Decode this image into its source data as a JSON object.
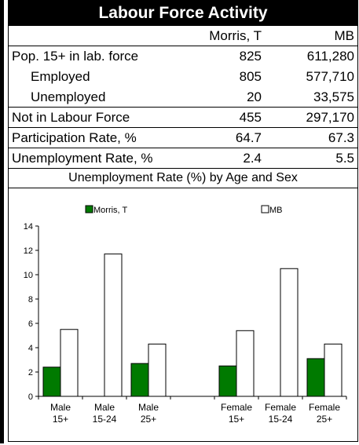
{
  "table": {
    "title": "Labour Force Activity",
    "col_headers": [
      "Morris, T",
      "MB"
    ],
    "rows": [
      {
        "label": "Pop. 15+ in lab. force",
        "morris": "825",
        "mb": "611,280",
        "indent": false
      },
      {
        "label": "Employed",
        "morris": "805",
        "mb": "577,710",
        "indent": true
      },
      {
        "label": "Unemployed",
        "morris": "20",
        "mb": "33,575",
        "indent": true
      },
      {
        "label": "Not in Labour Force",
        "morris": "455",
        "mb": "297,170",
        "indent": false
      },
      {
        "label": "Participation Rate, %",
        "morris": "64.7",
        "mb": "67.3",
        "indent": false
      },
      {
        "label": "Unemployment Rate, %",
        "morris": "2.4",
        "mb": "5.5",
        "indent": false
      }
    ]
  },
  "chart_data": {
    "type": "bar",
    "title": "Unemployment Rate (%) by Age and Sex",
    "categories": [
      [
        "Male",
        "15+"
      ],
      [
        "Male",
        "15-24"
      ],
      [
        "Male",
        "25+"
      ],
      [
        "",
        ""
      ],
      [
        "Female",
        "15+"
      ],
      [
        "Female",
        "15-24"
      ],
      [
        "Female",
        "25+"
      ]
    ],
    "series": [
      {
        "name": "Morris, T",
        "color": "#007a00",
        "values": [
          2.4,
          0,
          2.7,
          null,
          2.5,
          0,
          3.1
        ]
      },
      {
        "name": "MB",
        "color": "#ffffff",
        "values": [
          5.5,
          11.7,
          4.3,
          null,
          5.4,
          10.5,
          4.3
        ]
      }
    ],
    "ylim": [
      0,
      14
    ],
    "yticks": [
      0,
      2,
      4,
      6,
      8,
      10,
      12,
      14
    ],
    "legend_position": "top"
  }
}
